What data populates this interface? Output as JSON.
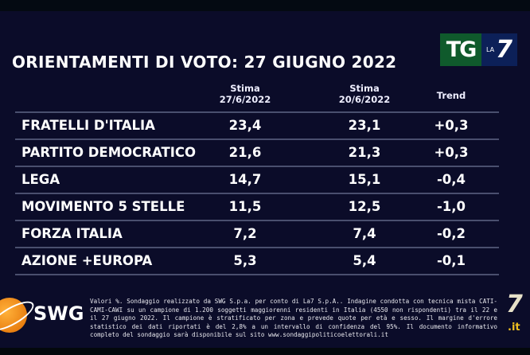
{
  "title": "ORIENTAMENTI DI VOTO: 27 GIUGNO 2022",
  "logo": {
    "tg": "TG",
    "la": "LA",
    "seven": "7"
  },
  "columns": {
    "c1": {
      "line1": "Stima",
      "line2": "27/6/2022"
    },
    "c2": {
      "line1": "Stima",
      "line2": "20/6/2022"
    },
    "c3": "Trend"
  },
  "rows": [
    {
      "party": "FRATELLI D'ITALIA",
      "current": "23,4",
      "previous": "23,1",
      "trend": "+0,3"
    },
    {
      "party": "PARTITO DEMOCRATICO",
      "current": "21,6",
      "previous": "21,3",
      "trend": "+0,3"
    },
    {
      "party": "LEGA",
      "current": "14,7",
      "previous": "15,1",
      "trend": "-0,4"
    },
    {
      "party": "MOVIMENTO 5 STELLE",
      "current": "11,5",
      "previous": "12,5",
      "trend": "-1,0"
    },
    {
      "party": "FORZA ITALIA",
      "current": "7,2",
      "previous": "7,4",
      "trend": "-0,2"
    },
    {
      "party": "AZIONE +EUROPA",
      "current": "5,3",
      "previous": "5,4",
      "trend": "-0,1"
    }
  ],
  "footer": {
    "brand": "SWG",
    "note": "Valori %. Sondaggio realizzato da SWG S.p.a. per conto di La7 S.p.A.. Indagine condotta con tecnica mista CATI-CAMI-CAWI su un campione di 1.200 soggetti maggiorenni residenti in Italia (4550 non rispondenti) tra il 22 e il 27 giugno 2022. Il campione è stratificato per zona e prevede quote per età e sesso. Il margine d'errore statistico dei dati riportati è del 2,8% a un intervallo di confidenza del 95%. Il documento informativo completo del sondaggio sarà disponibile sul sito www.sondaggipoliticoelettorali.it",
    "channel": {
      "seven": "7",
      "it": ".it"
    }
  },
  "colors": {
    "background": "#0b0c29",
    "tg_green": "#0f5a2c",
    "la7_blue": "#0c2058",
    "swg_orange": "#f08a10"
  }
}
